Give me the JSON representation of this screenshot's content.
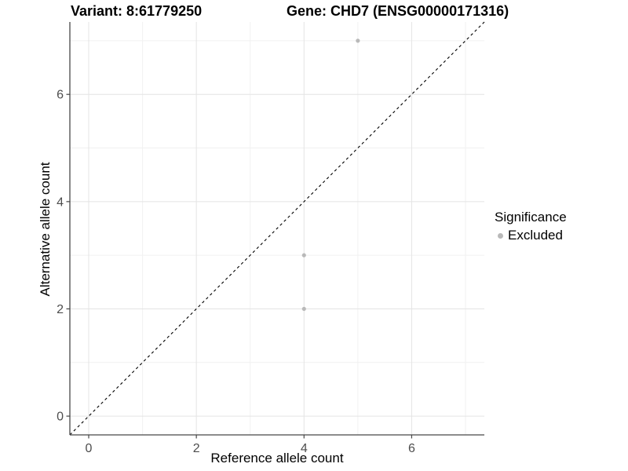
{
  "titles": {
    "left": "Variant: 8:61779250",
    "right": "Gene: CHD7 (ENSG00000171316)"
  },
  "chart_data": {
    "type": "scatter",
    "title_left": "Variant: 8:61779250",
    "title_right": "Gene: CHD7 (ENSG00000171316)",
    "xlabel": "Reference allele count",
    "ylabel": "Alternative allele count",
    "xlim": [
      -0.35,
      7.35
    ],
    "ylim": [
      -0.35,
      7.35
    ],
    "x_ticks": [
      0,
      2,
      4,
      6
    ],
    "y_ticks": [
      0,
      2,
      4,
      6
    ],
    "x_minor": [
      1,
      3,
      5,
      7
    ],
    "y_minor": [
      1,
      3,
      5,
      7
    ],
    "grid": true,
    "series": [
      {
        "name": "Excluded",
        "color": "#b9b9b9",
        "points": [
          [
            4,
            2
          ],
          [
            4,
            3
          ],
          [
            5,
            7
          ]
        ]
      }
    ],
    "identity_line": {
      "style": "dashed",
      "color": "#000000",
      "from": -0.35,
      "to": 7.35
    },
    "legend": {
      "title": "Significance",
      "position": "right",
      "entries": [
        {
          "label": "Excluded",
          "color": "#b9b9b9"
        }
      ]
    },
    "colors": {
      "major_grid": "#e4e4e4",
      "minor_grid": "#f1f1f1",
      "axis_line": "#474747",
      "tick_mark": "#474747",
      "tick_label": "#4d4d4d",
      "point": "#b9b9b9"
    }
  }
}
